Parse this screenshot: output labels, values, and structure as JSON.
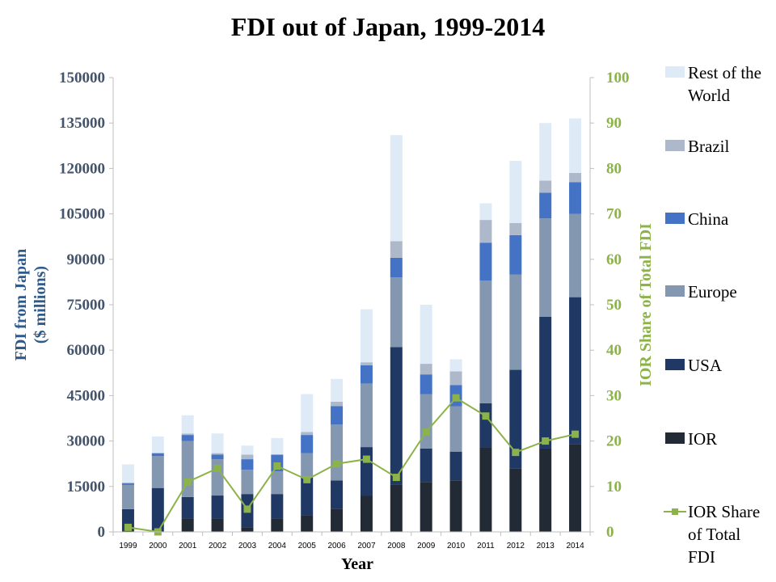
{
  "chart_data": {
    "type": "bar",
    "title": "FDI out of Japan, 1999-2014",
    "xlabel": "Year",
    "ylabel": "FDI from Japan\n($ millions)",
    "y2label": "IOR Share of Total FDI",
    "ylim": [
      0,
      150000
    ],
    "y2lim": [
      0,
      100
    ],
    "yticks": [
      "0",
      "15000",
      "30000",
      "45000",
      "60000",
      "75000",
      "90000",
      "105000",
      "120000",
      "135000",
      "150000"
    ],
    "y2ticks": [
      "0",
      "10",
      "20",
      "30",
      "40",
      "50",
      "60",
      "70",
      "80",
      "90",
      "100"
    ],
    "categories": [
      "1999",
      "2000",
      "2001",
      "2002",
      "2003",
      "2004",
      "2005",
      "2006",
      "2007",
      "2008",
      "2009",
      "2010",
      "2011",
      "2012",
      "2013",
      "2014"
    ],
    "stacked": true,
    "series": [
      {
        "name": "IOR",
        "color": "#222a35",
        "values": [
          500,
          0,
          4500,
          4500,
          1500,
          4500,
          5500,
          7500,
          12000,
          15500,
          16500,
          17000,
          28000,
          21000,
          27500,
          29000
        ]
      },
      {
        "name": "USA",
        "color": "#1f3864",
        "values": [
          7000,
          14500,
          7000,
          7500,
          11000,
          8000,
          12500,
          9500,
          16000,
          45500,
          11000,
          9500,
          14500,
          32500,
          43500,
          48500
        ]
      },
      {
        "name": "Europe",
        "color": "#8497b0",
        "values": [
          8000,
          10500,
          18500,
          12000,
          8000,
          7500,
          8000,
          18500,
          21000,
          23000,
          18000,
          15000,
          40500,
          31500,
          32500,
          27500
        ]
      },
      {
        "name": "China",
        "color": "#4472c4",
        "values": [
          500,
          1000,
          2000,
          1500,
          3500,
          5500,
          6000,
          6000,
          6000,
          6500,
          6500,
          7000,
          12500,
          13000,
          8500,
          10500
        ]
      },
      {
        "name": "Brazil",
        "color": "#adb9ca",
        "values": [
          300,
          0,
          500,
          500,
          1500,
          0,
          1000,
          1500,
          1000,
          5500,
          3500,
          4500,
          7500,
          4000,
          4000,
          3000
        ]
      },
      {
        "name": "Rest of the World",
        "color": "#deebf7",
        "values": [
          6000,
          5500,
          6000,
          6500,
          3000,
          5500,
          12500,
          7500,
          17500,
          35000,
          19500,
          4000,
          5500,
          20500,
          19000,
          18000
        ]
      }
    ],
    "line_series": {
      "name": "IOR Share of Total FDI",
      "color": "#8cb34a",
      "axis": "right",
      "values": [
        1,
        0,
        11,
        14,
        5,
        14.5,
        11.5,
        15,
        16,
        12,
        22,
        29.5,
        25.5,
        17.5,
        20,
        21.5
      ]
    },
    "legend_position": "right",
    "legend": [
      {
        "label": "Rest of the World",
        "kind": "box",
        "color": "#deebf7"
      },
      {
        "label": "Brazil",
        "kind": "box",
        "color": "#adb9ca"
      },
      {
        "label": "China",
        "kind": "box",
        "color": "#4472c4"
      },
      {
        "label": "Europe",
        "kind": "box",
        "color": "#8497b0"
      },
      {
        "label": "USA",
        "kind": "box",
        "color": "#1f3864"
      },
      {
        "label": "IOR",
        "kind": "box",
        "color": "#222a35"
      },
      {
        "label": "IOR Share of Total FDI",
        "kind": "line",
        "color": "#8cb34a"
      }
    ],
    "grid": false
  }
}
